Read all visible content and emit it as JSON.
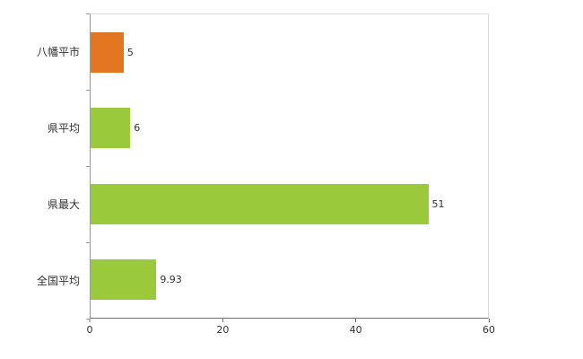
{
  "chart_data": {
    "type": "bar",
    "orientation": "horizontal",
    "title": "",
    "xlabel": "",
    "ylabel": "",
    "categories": [
      "八幡平市",
      "県平均",
      "県最大",
      "全国平均"
    ],
    "values": [
      5,
      6,
      51,
      9.93
    ],
    "value_labels": [
      "5",
      "6",
      "51",
      "9.93"
    ],
    "bar_colors": [
      "#e2751f",
      "#9aca3c",
      "#9aca3c",
      "#9aca3c"
    ],
    "xlim": [
      0,
      60
    ],
    "x_ticks": [
      0,
      20,
      40,
      60
    ],
    "grid": false,
    "legend": "none",
    "background": "#ffffff",
    "colors": {
      "highlight_bar": "#e2751f",
      "default_bar": "#9aca3c",
      "axis": "#707070",
      "plot_border": "#d9d9d9",
      "text": "#333333"
    }
  }
}
